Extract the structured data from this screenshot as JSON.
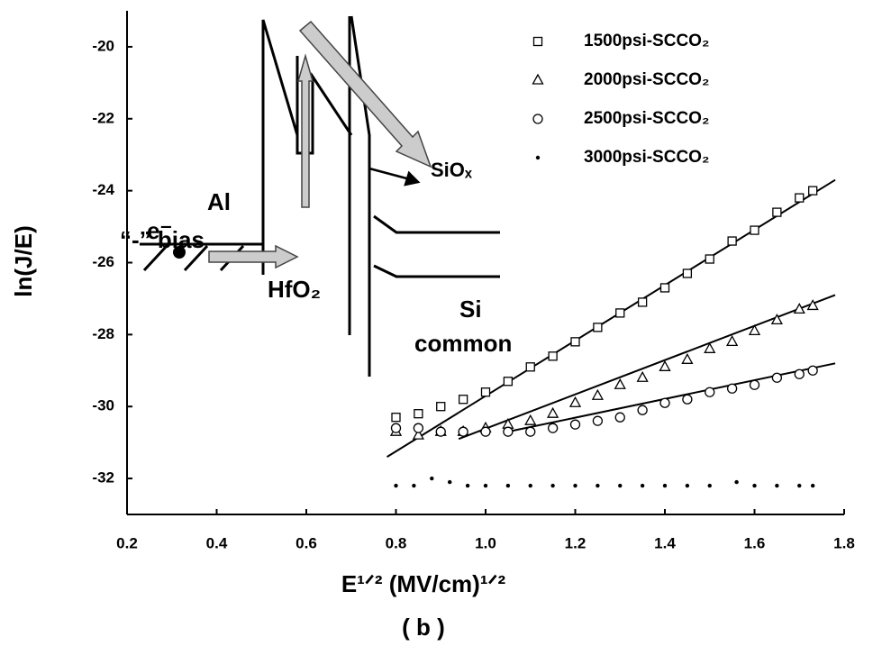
{
  "chart_data": {
    "type": "scatter",
    "x_label": "E¹ᐟ²  (MV/cm)¹ᐟ²",
    "y_label": "ln(J/E)",
    "caption": "( b )",
    "xlim": [
      0.2,
      1.8
    ],
    "ylim": [
      -33,
      -19
    ],
    "xticks": [
      0.2,
      0.4,
      0.6,
      0.8,
      {
        "value": 1,
        "label": "1.0"
      },
      1.2,
      1.4,
      1.6,
      1.8
    ],
    "yticks": [
      -20,
      -22,
      -24,
      -26,
      -28,
      -30,
      -32
    ],
    "legend": "top-right",
    "series": [
      {
        "name": "1500psi-SCCO₂",
        "marker": "square",
        "color": "#000000",
        "x": [
          0.8,
          0.85,
          0.9,
          0.95,
          1.0,
          1.05,
          1.1,
          1.15,
          1.2,
          1.25,
          1.3,
          1.35,
          1.4,
          1.45,
          1.5,
          1.55,
          1.6,
          1.65,
          1.7,
          1.73
        ],
        "values": [
          -30.3,
          -30.2,
          -30.0,
          -29.8,
          -29.6,
          -29.3,
          -28.9,
          -28.6,
          -28.2,
          -27.8,
          -27.4,
          -27.1,
          -26.7,
          -26.3,
          -25.9,
          -25.4,
          -25.1,
          -24.6,
          -24.2,
          -24.0
        ]
      },
      {
        "name": "2000psi-SCCO₂",
        "marker": "triangle",
        "color": "#000000",
        "x": [
          0.8,
          0.85,
          0.9,
          0.95,
          1.0,
          1.05,
          1.1,
          1.15,
          1.2,
          1.25,
          1.3,
          1.35,
          1.4,
          1.45,
          1.5,
          1.55,
          1.6,
          1.65,
          1.7,
          1.73
        ],
        "values": [
          -30.7,
          -30.8,
          -30.7,
          -30.7,
          -30.6,
          -30.5,
          -30.4,
          -30.2,
          -29.9,
          -29.7,
          -29.4,
          -29.2,
          -28.9,
          -28.7,
          -28.4,
          -28.2,
          -27.9,
          -27.6,
          -27.3,
          -27.2
        ]
      },
      {
        "name": "2500psi-SCCO₂",
        "marker": "circle",
        "color": "#000000",
        "x": [
          0.8,
          0.85,
          0.9,
          0.95,
          1.0,
          1.05,
          1.1,
          1.15,
          1.2,
          1.25,
          1.3,
          1.35,
          1.4,
          1.45,
          1.5,
          1.55,
          1.6,
          1.65,
          1.7,
          1.73
        ],
        "values": [
          -30.6,
          -30.6,
          -30.7,
          -30.7,
          -30.7,
          -30.7,
          -30.7,
          -30.6,
          -30.5,
          -30.4,
          -30.3,
          -30.1,
          -29.9,
          -29.8,
          -29.6,
          -29.5,
          -29.4,
          -29.2,
          -29.1,
          -29.0
        ]
      },
      {
        "name": "3000psi-SCCO₂",
        "marker": "dot",
        "color": "#000000",
        "x": [
          0.8,
          0.84,
          0.88,
          0.92,
          0.96,
          1.0,
          1.05,
          1.1,
          1.15,
          1.2,
          1.25,
          1.3,
          1.35,
          1.4,
          1.45,
          1.5,
          1.56,
          1.6,
          1.65,
          1.7,
          1.73
        ],
        "values": [
          -32.2,
          -32.2,
          -32.0,
          -32.1,
          -32.2,
          -32.2,
          -32.2,
          -32.2,
          -32.2,
          -32.2,
          -32.2,
          -32.2,
          -32.2,
          -32.2,
          -32.2,
          -32.2,
          -32.1,
          -32.2,
          -32.2,
          -32.2,
          -32.2
        ]
      }
    ],
    "fits": [
      {
        "x": [
          0.78,
          1.78
        ],
        "values": [
          -31.4,
          -23.7
        ]
      },
      {
        "x": [
          0.94,
          1.78
        ],
        "values": [
          -30.9,
          -26.9
        ]
      },
      {
        "x": [
          1.05,
          1.78
        ],
        "values": [
          -30.7,
          -28.8
        ]
      }
    ],
    "annotations": [
      "e⁻",
      "Al",
      "“-” bias",
      "HfO₂",
      "SiOₓ",
      "Si",
      "common"
    ]
  }
}
